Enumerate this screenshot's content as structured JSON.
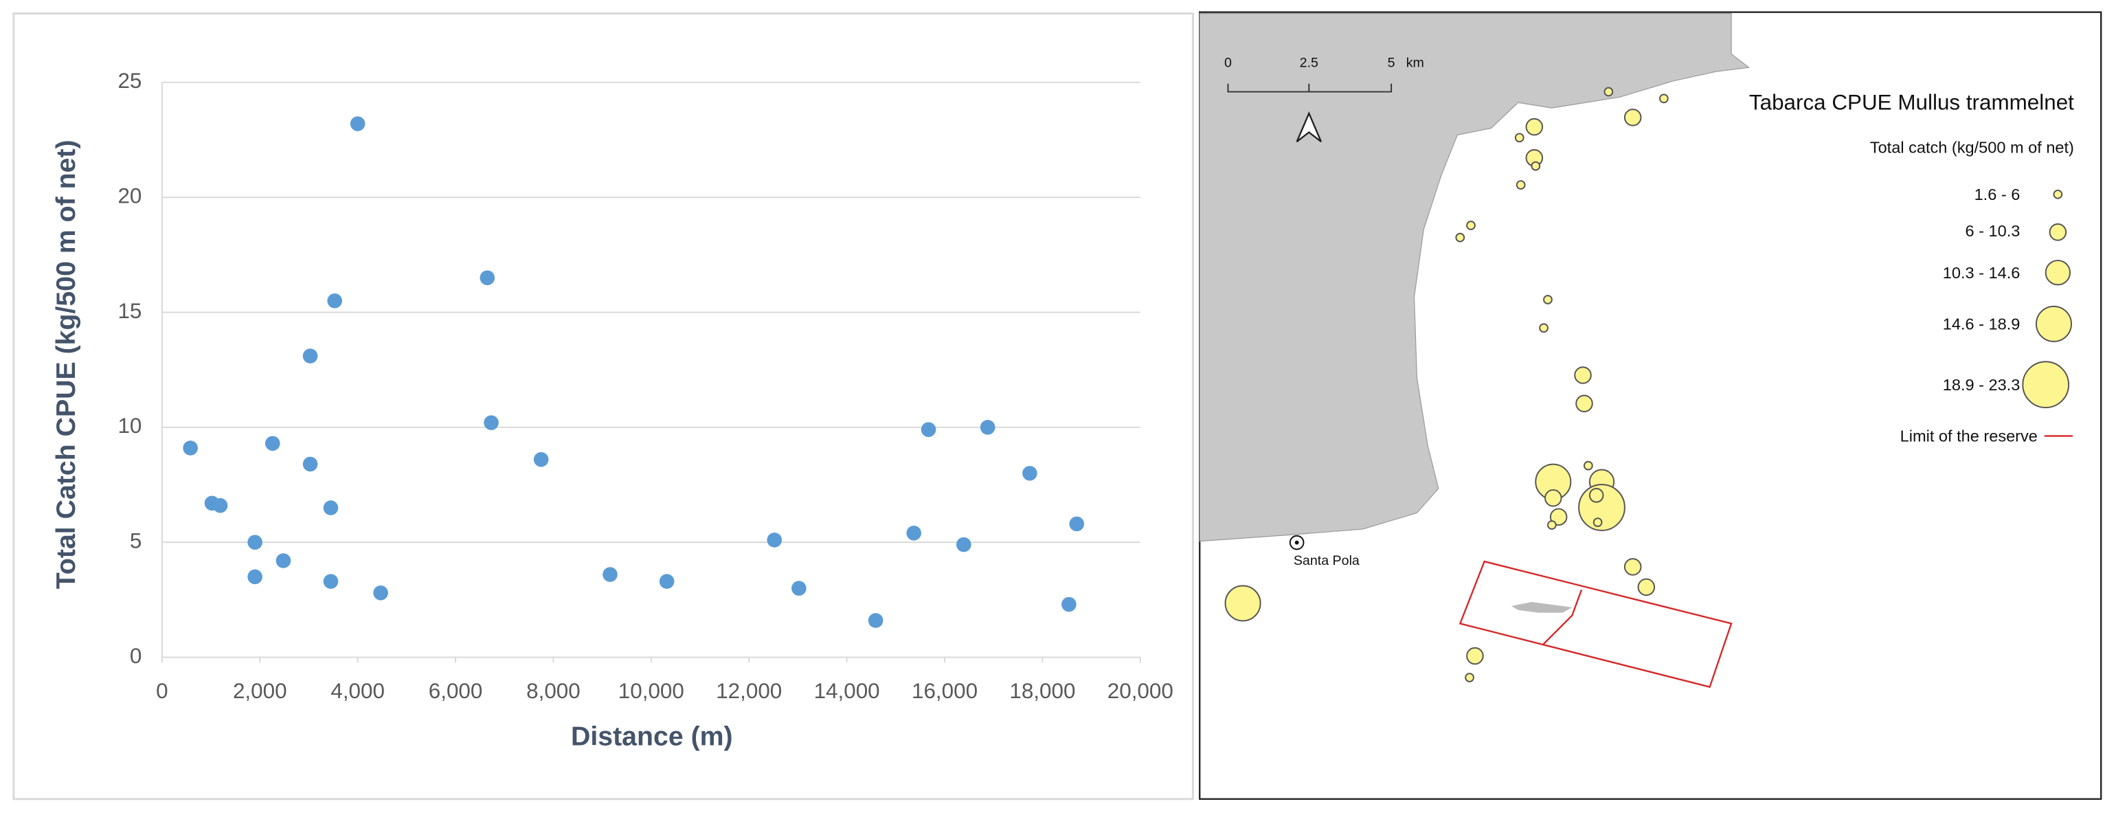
{
  "chart_data": {
    "type": "scatter",
    "xlabel": "Distance (m)",
    "ylabel": "Total Catch CPUE  (kg/500 m of net)",
    "x": [
      580,
      1020,
      1190,
      1900,
      1900,
      2260,
      2480,
      3030,
      3030,
      3450,
      3450,
      3530,
      4000,
      4470,
      6650,
      6730,
      7750,
      9160,
      10320,
      12520,
      13020,
      14590,
      15370,
      15670,
      16390,
      16880,
      17740,
      18540,
      18700
    ],
    "values": [
      9.1,
      6.7,
      6.6,
      5.0,
      3.5,
      9.3,
      4.2,
      13.1,
      8.4,
      6.5,
      3.3,
      15.5,
      23.2,
      2.8,
      16.5,
      10.2,
      8.6,
      3.6,
      3.3,
      5.1,
      3.0,
      1.6,
      5.4,
      9.9,
      4.9,
      10.0,
      8.0,
      2.3,
      5.8
    ],
    "color": "#5b9bd5",
    "xlim": [
      0,
      20000
    ],
    "xticks": [
      0,
      {
        "value": 2000,
        "label": "2,000"
      },
      {
        "value": 4000,
        "label": "4,000"
      },
      {
        "value": 6000,
        "label": "6,000"
      },
      {
        "value": 8000,
        "label": "8,000"
      },
      {
        "value": 10000,
        "label": "10,000"
      },
      {
        "value": 12000,
        "label": "12,000"
      },
      {
        "value": 14000,
        "label": "14,000"
      },
      {
        "value": 16000,
        "label": "16,000"
      },
      {
        "value": 18000,
        "label": "18,000"
      },
      {
        "value": 20000,
        "label": "20,000"
      }
    ],
    "ylim": [
      0,
      25
    ],
    "yticks": [
      0,
      5,
      10,
      15,
      20,
      25
    ],
    "grid": true
  },
  "map": {
    "title": "Tabarca CPUE Mullus trammelnet",
    "legend_title": "Total catch (kg/500 m of net)",
    "classes": [
      "1.6 - 6",
      "6 - 10.3",
      "10.3 - 14.6",
      "14.6 - 18.9",
      "18.9 - 23.3"
    ],
    "reserve_label": "Limit of the reserve",
    "scale_labels": [
      "0",
      "2.5",
      "5"
    ],
    "scale_unit": "km",
    "place_label": "Santa Pola"
  }
}
